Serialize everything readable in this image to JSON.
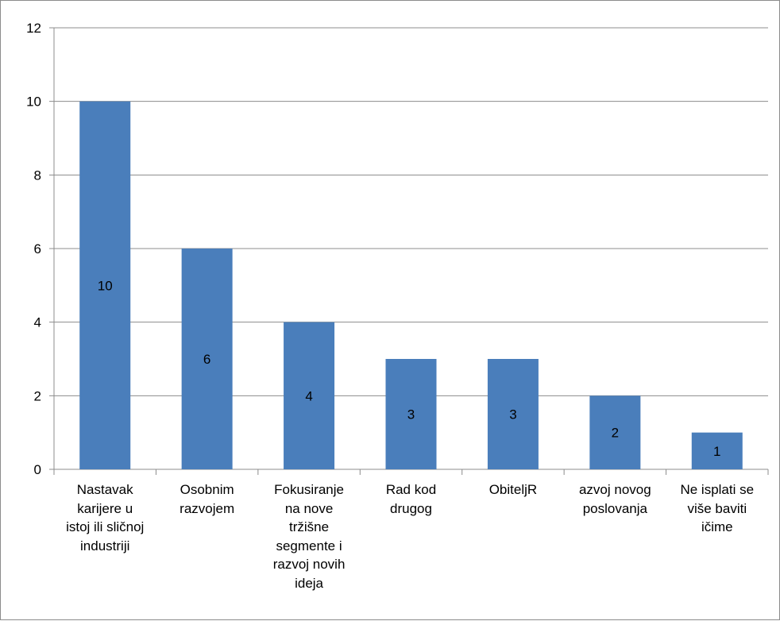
{
  "chart_data": {
    "type": "bar",
    "title": "",
    "xlabel": "",
    "ylabel": "",
    "ylim": [
      0,
      12
    ],
    "yticks": [
      0,
      2,
      4,
      6,
      8,
      10,
      12
    ],
    "grid": true,
    "legend": "none",
    "bar_color": "#4a7ebb",
    "categories": [
      "Nastavak\nkarijere u\nistoj ili sličnoj\nindustriji",
      "Osobnim\nrazvojem",
      "Fokusiranje\nna nove\ntržišne\nsegmente i\nrazvoj novih\nideja",
      "Rad kod\ndrugog",
      "ObiteljR",
      "azvoj novog\nposlovanja",
      "Ne isplati se\nviše baviti\ničime"
    ],
    "values": [
      10,
      6,
      4,
      3,
      3,
      2,
      1
    ],
    "data_labels": [
      "10",
      "6",
      "4",
      "3",
      "3",
      "2",
      "1"
    ]
  }
}
